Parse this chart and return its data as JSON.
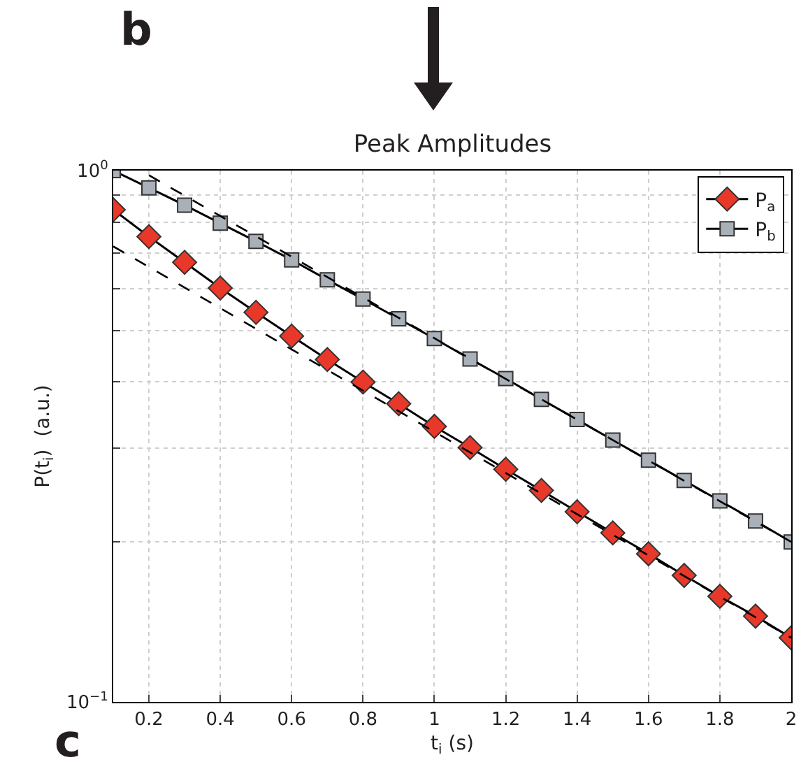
{
  "chart_data": {
    "type": "line",
    "title": "Peak Amplitudes",
    "xlabel": "t$_{i}$ (s)",
    "ylabel": "P(t$_{i}$)  (a.u.)",
    "annotations": [
      "b",
      "c"
    ],
    "x": [
      0.1,
      0.2,
      0.3,
      0.4,
      0.5,
      0.6,
      0.7,
      0.8,
      0.9,
      1.0,
      1.1,
      1.2,
      1.3,
      1.4,
      1.5,
      1.6,
      1.7,
      1.8,
      1.9,
      2.0
    ],
    "series": [
      {
        "name": "P$_{a}$",
        "color": "#e8382a",
        "marker": "diamond",
        "values": [
          0.844,
          0.751,
          0.672,
          0.601,
          0.541,
          0.488,
          0.441,
          0.4,
          0.364,
          0.33,
          0.301,
          0.274,
          0.25,
          0.228,
          0.208,
          0.19,
          0.173,
          0.158,
          0.145,
          0.132
        ]
      },
      {
        "name": "P$_{b}$",
        "color": "#a9b0b8",
        "marker": "square",
        "values": [
          1.0,
          0.928,
          0.861,
          0.796,
          0.736,
          0.679,
          0.623,
          0.573,
          0.526,
          0.483,
          0.442,
          0.406,
          0.371,
          0.34,
          0.311,
          0.285,
          0.261,
          0.239,
          0.219,
          0.2
        ]
      },
      {
        "color": "#000000",
        "marker": "none",
        "line_style": "dashed",
        "x": [
          0.1,
          2.0
        ],
        "values": [
          0.72,
          0.132
        ]
      },
      {
        "color": "#000000",
        "marker": "none",
        "line_style": "dashed",
        "x": [
          0.2,
          2.0
        ],
        "values": [
          0.98,
          0.2
        ]
      }
    ],
    "xlim": [
      0.1,
      2
    ],
    "xticks": [
      0.2,
      0.4,
      0.6,
      0.8,
      1,
      1.2,
      1.4,
      1.6,
      1.8,
      2
    ],
    "ylim": [
      0.1,
      1
    ],
    "yticks": [
      {
        "value": 0.1,
        "label": "10$^{−1}$"
      },
      {
        "value": 0.2,
        "label": null
      },
      {
        "value": 0.3,
        "label": null
      },
      {
        "value": 0.4,
        "label": null
      },
      {
        "value": 0.5,
        "label": null
      },
      {
        "value": 0.6,
        "label": null
      },
      {
        "value": 0.7,
        "label": null
      },
      {
        "value": 0.8,
        "label": null
      },
      {
        "value": 0.9,
        "label": null
      },
      {
        "value": 1,
        "label": "10$^{0}$"
      }
    ],
    "log": true,
    "grid": true,
    "legend": "top right"
  }
}
